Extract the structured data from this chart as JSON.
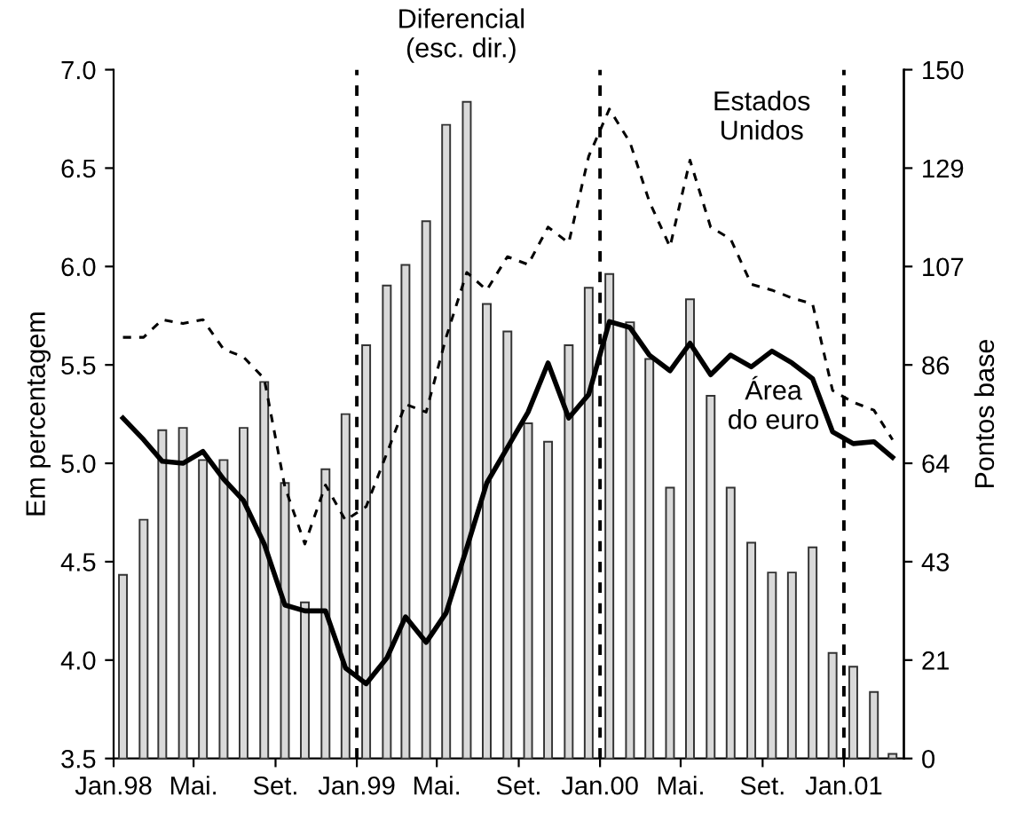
{
  "chart_data": {
    "type": "line",
    "x": [
      "1998-01-15",
      "1998-02-15",
      "1998-03-15",
      "1998-04-15",
      "1998-05-15",
      "1998-06-15",
      "1998-07-15",
      "1998-08-15",
      "1998-09-15",
      "1998-10-15",
      "1998-11-15",
      "1998-12-15",
      "1999-01-15",
      "1999-02-15",
      "1999-03-15",
      "1999-04-15",
      "1999-05-15",
      "1999-06-15",
      "1999-07-15",
      "1999-08-15",
      "1999-09-15",
      "1999-10-15",
      "1999-11-15",
      "1999-12-15",
      "2000-01-15",
      "2000-02-15",
      "2000-03-15",
      "2000-04-15",
      "2000-05-15",
      "2000-06-15",
      "2000-07-15",
      "2000-08-15",
      "2000-09-15",
      "2000-10-15",
      "2000-11-15",
      "2000-12-15",
      "2001-01-15",
      "2001-02-15",
      "2001-03-15"
    ],
    "series": [
      {
        "name": "Diferencial\n(esc. dir.)",
        "type": "bar",
        "axis": "y2",
        "color": "#d9d9d9",
        "values": [
          40,
          52,
          71.5,
          72,
          65,
          65,
          72,
          82,
          60,
          34,
          63,
          75,
          90,
          103,
          107.5,
          117,
          138,
          143,
          99,
          93,
          73,
          69,
          90,
          102.5,
          105.5,
          95,
          87,
          59,
          100,
          79,
          59,
          47,
          40.5,
          40.5,
          46,
          23,
          20,
          14.5,
          1
        ]
      },
      {
        "name": "Estados\nUnidos",
        "color": "#000000",
        "line_style": "dashed",
        "values": [
          5.64,
          5.64,
          5.73,
          5.71,
          5.73,
          5.58,
          5.54,
          5.43,
          4.88,
          4.59,
          4.89,
          4.71,
          4.78,
          5.05,
          5.3,
          5.26,
          5.64,
          5.97,
          5.88,
          6.05,
          6.01,
          6.2,
          6.12,
          6.56,
          6.8,
          6.63,
          6.33,
          6.1,
          6.54,
          6.2,
          6.14,
          5.91,
          5.88,
          5.84,
          5.81,
          5.37,
          5.31,
          5.27,
          5.12
        ]
      },
      {
        "name": "Área\ndo euro",
        "color": "#000000",
        "line_style": "solid",
        "values": [
          5.23,
          5.12,
          5.01,
          5.0,
          5.06,
          4.92,
          4.81,
          4.59,
          4.28,
          4.25,
          4.25,
          3.96,
          3.88,
          4.01,
          4.22,
          4.09,
          4.24,
          4.57,
          4.9,
          5.08,
          5.26,
          5.51,
          5.23,
          5.35,
          5.72,
          5.69,
          5.55,
          5.47,
          5.61,
          5.45,
          5.55,
          5.49,
          5.57,
          5.51,
          5.43,
          5.16,
          5.1,
          5.11,
          5.03
        ]
      }
    ],
    "xlim": [
      "1998-01-01",
      "2001-04-01"
    ],
    "xticks": [
      {
        "value": "1998-01-01",
        "label": "Jan.98"
      },
      {
        "value": "1998-05-01",
        "label": "Mai."
      },
      {
        "value": "1998-09-01",
        "label": "Set."
      },
      {
        "value": "1999-01-01",
        "label": "Jan.99"
      },
      {
        "value": "1999-05-01",
        "label": "Mai."
      },
      {
        "value": "1999-09-01",
        "label": "Set."
      },
      {
        "value": "2000-01-01",
        "label": "Jan.00"
      },
      {
        "value": "2000-05-01",
        "label": "Mai."
      },
      {
        "value": "2000-09-01",
        "label": "Set."
      },
      {
        "value": "2001-01-01",
        "label": "Jan.01"
      }
    ],
    "ylim": [
      3.5,
      7.0
    ],
    "yticks": [
      3.5,
      {
        "value": 4,
        "label": "4.0"
      },
      4.5,
      {
        "value": 5,
        "label": "5.0"
      },
      5.5,
      {
        "value": 6,
        "label": "6.0"
      },
      6.5,
      {
        "value": 7,
        "label": "7.0"
      }
    ],
    "y2lim": [
      0,
      150
    ],
    "y2ticks": [
      0,
      {
        "value": 21.43,
        "label": "21"
      },
      {
        "value": 42.86,
        "label": "43"
      },
      {
        "value": 64.29,
        "label": "64"
      },
      {
        "value": 85.71,
        "label": "86"
      },
      {
        "value": 107.14,
        "label": "107"
      },
      {
        "value": 128.57,
        "label": "129"
      },
      150
    ],
    "ylabel": "Em percentagem",
    "y2label": "Pontos base",
    "ref_lines": [
      {
        "axis": "x",
        "value": "1999-01-01",
        "color": "#000000",
        "line_style": "dashed"
      },
      {
        "axis": "x",
        "value": "2000-01-01",
        "color": "#000000",
        "line_style": "dashed"
      },
      {
        "axis": "x",
        "value": "2001-01-01",
        "color": "#000000",
        "line_style": "dashed"
      }
    ],
    "grid": false,
    "legend": false
  }
}
